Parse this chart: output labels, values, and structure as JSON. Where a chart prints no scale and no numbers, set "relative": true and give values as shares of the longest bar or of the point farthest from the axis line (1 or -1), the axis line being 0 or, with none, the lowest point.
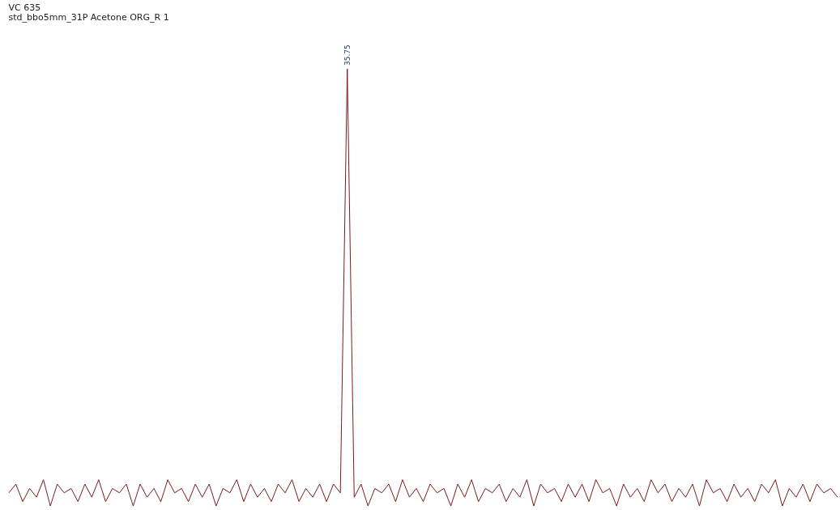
{
  "chart_data": {
    "type": "line",
    "title": "VC 635",
    "subtitle": "std_bbo5mm_31P Acetone ORG_R 1",
    "relative": true,
    "color": "#7b1a1a",
    "annotations": [
      "35.75"
    ],
    "categories": [
      null,
      null,
      null,
      null,
      null,
      null,
      null,
      null,
      null,
      null,
      null,
      null,
      null,
      null,
      null,
      null,
      null,
      null,
      null,
      null,
      null,
      null,
      null,
      null,
      null,
      null,
      null,
      null,
      null,
      null,
      null,
      null,
      null,
      null,
      null,
      null,
      null,
      null,
      null,
      null,
      null,
      null,
      null,
      null,
      null,
      null,
      null,
      null,
      null,
      null,
      null,
      null,
      null,
      null,
      null,
      null,
      null,
      null,
      null,
      null,
      null,
      null,
      null,
      null,
      null,
      null,
      null,
      null,
      null,
      null,
      null,
      null,
      null,
      null,
      null,
      null,
      null,
      null,
      null,
      null,
      null,
      null,
      null,
      null,
      null,
      null,
      null,
      null,
      null,
      null,
      null,
      null,
      null,
      null,
      null,
      null,
      null,
      null,
      null,
      null,
      null,
      null,
      null,
      null,
      null,
      null,
      null,
      null,
      null,
      null,
      null,
      null,
      null,
      null,
      null,
      null,
      null,
      null,
      null,
      null,
      null
    ],
    "values": [
      0.03,
      0.05,
      0.01,
      0.04,
      0.02,
      0.06,
      0.0,
      0.05,
      0.03,
      0.04,
      0.01,
      0.05,
      0.02,
      0.06,
      0.01,
      0.04,
      0.03,
      0.05,
      0.0,
      0.05,
      0.02,
      0.04,
      0.01,
      0.06,
      0.03,
      0.04,
      0.01,
      0.05,
      0.02,
      0.05,
      0.0,
      0.04,
      0.03,
      0.06,
      0.01,
      0.05,
      0.02,
      0.04,
      0.01,
      0.05,
      0.03,
      0.06,
      0.01,
      0.04,
      0.02,
      0.05,
      0.01,
      0.05,
      0.03,
      1,
      0.02,
      0.05,
      0.0,
      0.04,
      0.03,
      0.05,
      0.01,
      0.06,
      0.02,
      0.04,
      0.01,
      0.05,
      0.03,
      0.04,
      0.0,
      0.05,
      0.02,
      0.06,
      0.01,
      0.04,
      0.03,
      0.05,
      0.01,
      0.04,
      0.02,
      0.06,
      0.0,
      0.05,
      0.03,
      0.04,
      0.01,
      0.05,
      0.02,
      0.05,
      0.01,
      0.06,
      0.03,
      0.04,
      0.0,
      0.05,
      0.02,
      0.04,
      0.01,
      0.06,
      0.03,
      0.05,
      0.01,
      0.04,
      0.02,
      0.05,
      0.0,
      0.06,
      0.03,
      0.04,
      0.01,
      0.05,
      0.02,
      0.04,
      0.01,
      0.05,
      0.03,
      0.06,
      0.0,
      0.04,
      0.02,
      0.05,
      0.01,
      0.05,
      0.03,
      0.04,
      0.02
    ]
  }
}
